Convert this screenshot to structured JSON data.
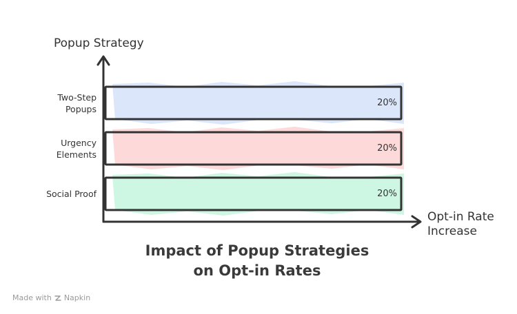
{
  "chart_data": {
    "type": "bar",
    "orientation": "horizontal",
    "title": "Impact of Popup Strategies\non Opt-in Rates",
    "ylabel": "Popup Strategy",
    "xlabel": "Opt-in Rate Increase",
    "categories": [
      "Two-Step\nPopups",
      "Urgency\nElements",
      "Social Proof"
    ],
    "values": [
      20,
      20,
      20
    ],
    "value_labels": [
      "20%",
      "20%",
      "20%"
    ],
    "xlim": [
      0,
      20
    ],
    "colors": [
      "#dbe6fb",
      "#fdd9d9",
      "#cdf7e2"
    ],
    "grid": false,
    "legend": "none"
  },
  "watermark": {
    "prefix": "Made with",
    "brand": "Napkin",
    "icon": "napkin-icon"
  }
}
